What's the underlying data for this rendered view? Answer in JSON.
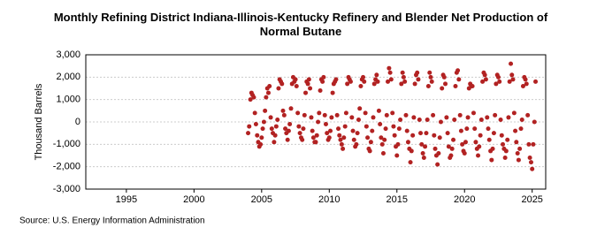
{
  "chart_data": {
    "type": "scatter",
    "title": "Monthly Refining District Indiana-Illinois-Kentucky Refinery and Blender Net Production of Normal Butane",
    "y_label": "Thousand Barrels",
    "source": "Source: U.S. Energy Information Administration",
    "xlim": [
      1992,
      2026
    ],
    "xticks": [
      1995,
      2000,
      2005,
      2010,
      2015,
      2020,
      2025
    ],
    "ylim": [
      -3000,
      3000
    ],
    "yticks": [
      {
        "value": -3000,
        "label": "-3,000"
      },
      {
        "value": -2000,
        "label": "-2,000"
      },
      {
        "value": -1000,
        "label": "-1,000"
      },
      0,
      {
        "value": 1000,
        "label": "1,000"
      },
      {
        "value": 2000,
        "label": "2,000"
      },
      {
        "value": 3000,
        "label": "3,000"
      }
    ],
    "grid": true,
    "series": [
      {
        "name": "Normal Butane",
        "color": "#b22222",
        "x": [
          2004.0,
          2004.08,
          2004.17,
          2004.25,
          2004.33,
          2004.42,
          2004.5,
          2004.58,
          2004.67,
          2004.75,
          2004.83,
          2004.92,
          2005.0,
          2005.08,
          2005.17,
          2005.25,
          2005.33,
          2005.42,
          2005.5,
          2005.58,
          2005.67,
          2005.75,
          2005.83,
          2005.92,
          2006.0,
          2006.08,
          2006.17,
          2006.25,
          2006.33,
          2006.42,
          2006.5,
          2006.58,
          2006.67,
          2006.75,
          2006.83,
          2006.92,
          2007.0,
          2007.08,
          2007.17,
          2007.25,
          2007.33,
          2007.42,
          2007.5,
          2007.58,
          2007.67,
          2007.75,
          2007.83,
          2007.92,
          2008.0,
          2008.08,
          2008.17,
          2008.25,
          2008.33,
          2008.42,
          2008.5,
          2008.58,
          2008.67,
          2008.75,
          2008.83,
          2008.92,
          2009.0,
          2009.08,
          2009.17,
          2009.25,
          2009.33,
          2009.42,
          2009.5,
          2009.58,
          2009.67,
          2009.75,
          2009.83,
          2009.92,
          2010.0,
          2010.08,
          2010.17,
          2010.25,
          2010.33,
          2010.42,
          2010.5,
          2010.58,
          2010.67,
          2010.75,
          2010.83,
          2010.92,
          2011.0,
          2011.08,
          2011.17,
          2011.25,
          2011.33,
          2011.42,
          2011.5,
          2011.58,
          2011.67,
          2011.75,
          2011.83,
          2011.92,
          2012.0,
          2012.08,
          2012.17,
          2012.25,
          2012.33,
          2012.42,
          2012.5,
          2012.58,
          2012.67,
          2012.75,
          2012.83,
          2012.92,
          2013.0,
          2013.08,
          2013.17,
          2013.25,
          2013.33,
          2013.42,
          2013.5,
          2013.58,
          2013.67,
          2013.75,
          2013.83,
          2013.92,
          2014.0,
          2014.08,
          2014.17,
          2014.25,
          2014.33,
          2014.42,
          2014.5,
          2014.58,
          2014.67,
          2014.75,
          2014.83,
          2014.92,
          2015.0,
          2015.08,
          2015.17,
          2015.25,
          2015.33,
          2015.42,
          2015.5,
          2015.58,
          2015.67,
          2015.75,
          2015.83,
          2015.92,
          2016.0,
          2016.08,
          2016.17,
          2016.25,
          2016.33,
          2016.42,
          2016.5,
          2016.58,
          2016.67,
          2016.75,
          2016.83,
          2016.92,
          2017.0,
          2017.08,
          2017.17,
          2017.25,
          2017.33,
          2017.42,
          2017.5,
          2017.58,
          2017.67,
          2017.75,
          2017.83,
          2017.92,
          2018.0,
          2018.08,
          2018.17,
          2018.25,
          2018.33,
          2018.42,
          2018.5,
          2018.58,
          2018.67,
          2018.75,
          2018.83,
          2018.92,
          2019.0,
          2019.08,
          2019.17,
          2019.25,
          2019.33,
          2019.42,
          2019.5,
          2019.58,
          2019.67,
          2019.75,
          2019.83,
          2019.92,
          2020.0,
          2020.08,
          2020.17,
          2020.25,
          2020.33,
          2020.42,
          2020.5,
          2020.58,
          2020.67,
          2020.75,
          2020.83,
          2020.92,
          2021.0,
          2021.08,
          2021.17,
          2021.25,
          2021.33,
          2021.42,
          2021.5,
          2021.58,
          2021.67,
          2021.75,
          2021.83,
          2021.92,
          2022.0,
          2022.08,
          2022.17,
          2022.25,
          2022.33,
          2022.42,
          2022.5,
          2022.58,
          2022.67,
          2022.75,
          2022.83,
          2022.92,
          2023.0,
          2023.08,
          2023.17,
          2023.25,
          2023.33,
          2023.42,
          2023.5,
          2023.58,
          2023.67,
          2023.75,
          2023.83,
          2023.92,
          2024.0,
          2024.08,
          2024.17,
          2024.25,
          2024.33,
          2024.42,
          2024.5,
          2024.58,
          2024.67,
          2024.75,
          2024.83,
          2024.92,
          2025.0,
          2025.08,
          2025.17,
          2025.25
        ],
        "values": [
          -500,
          -200,
          1000,
          1300,
          1200,
          1100,
          400,
          -100,
          -600,
          -900,
          -1100,
          -1000,
          -700,
          -300,
          0,
          500,
          1100,
          1500,
          1300,
          1600,
          200,
          -300,
          -500,
          -900,
          -600,
          -200,
          100,
          1500,
          1900,
          1800,
          1700,
          500,
          300,
          -300,
          -500,
          -800,
          -400,
          -100,
          600,
          1700,
          2000,
          1800,
          1900,
          1600,
          400,
          -200,
          -500,
          -700,
          -800,
          -300,
          300,
          1300,
          1800,
          1700,
          1900,
          1500,
          200,
          -400,
          -700,
          -900,
          -900,
          -600,
          0,
          400,
          1400,
          1900,
          1800,
          2000,
          300,
          -100,
          -500,
          -800,
          -700,
          -400,
          200,
          1300,
          1700,
          1800,
          1900,
          300,
          -300,
          -600,
          -800,
          -1000,
          -1200,
          -700,
          -200,
          400,
          1700,
          2000,
          1900,
          1800,
          200,
          -400,
          -800,
          -1100,
          -1000,
          -500,
          100,
          600,
          1600,
          1900,
          2000,
          1800,
          400,
          -200,
          -700,
          -1200,
          -1300,
          -900,
          -400,
          200,
          1700,
          1900,
          2100,
          1800,
          500,
          -100,
          -700,
          -1000,
          -1400,
          -800,
          -300,
          300,
          1800,
          2400,
          2200,
          1900,
          400,
          -200,
          -600,
          -1100,
          -1500,
          -1000,
          -300,
          100,
          1700,
          2200,
          2000,
          1800,
          300,
          -400,
          -900,
          -1200,
          -1800,
          -1300,
          -600,
          200,
          1700,
          2100,
          2200,
          1900,
          100,
          -500,
          -1000,
          -1400,
          -1600,
          -1100,
          -500,
          100,
          1600,
          2200,
          2000,
          1800,
          300,
          -600,
          -1200,
          -1500,
          -1900,
          -1400,
          -700,
          0,
          1500,
          2100,
          2000,
          1700,
          200,
          -500,
          -1100,
          -1600,
          -1500,
          -1200,
          -800,
          100,
          1600,
          2200,
          2300,
          1900,
          300,
          -400,
          -1000,
          -1300,
          -1400,
          -900,
          -300,
          200,
          1500,
          1700,
          1600,
          1600,
          400,
          -300,
          -900,
          -1200,
          -1500,
          -1100,
          -600,
          100,
          1800,
          2200,
          2100,
          1900,
          200,
          -300,
          -800,
          -1300,
          -1700,
          -1200,
          -500,
          300,
          1700,
          2100,
          2000,
          1800,
          100,
          -600,
          -1000,
          -1200,
          -1600,
          -1300,
          -800,
          200,
          1800,
          2600,
          2100,
          1900,
          400,
          -400,
          -900,
          -1400,
          -1700,
          -1200,
          -300,
          100,
          1600,
          2000,
          1900,
          1700,
          300,
          -1000,
          -1600,
          -1800,
          -2100,
          -1000,
          0,
          1800
        ]
      }
    ]
  }
}
